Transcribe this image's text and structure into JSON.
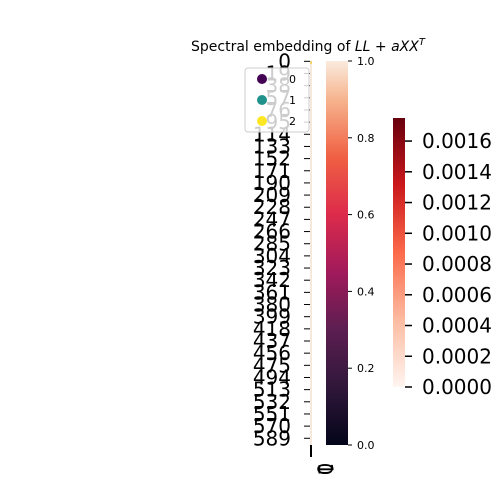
{
  "chart_data": [
    {
      "type": "heatmap",
      "title": "Spectral embedding of ",
      "title_math": {
        "p1": "LL",
        "p2": " + ",
        "p3": "aXX",
        "sup": "T"
      },
      "row_tick_labels": [
        "0",
        "19",
        "38",
        "57",
        "76",
        "95",
        "114",
        "133",
        "152",
        "171",
        "190",
        "209",
        "228",
        "247",
        "266",
        "285",
        "304",
        "323",
        "342",
        "361",
        "380",
        "399",
        "418",
        "437",
        "456",
        "475",
        "494",
        "513",
        "532",
        "551",
        "570",
        "589"
      ],
      "col_tick_labels": [
        "0",
        "1"
      ],
      "rows": 600,
      "cols": 2,
      "values_note": "",
      "colorbar": {
        "colormap": "rocket",
        "range": [
          0.0,
          1.0
        ],
        "ticks": [
          "0.0",
          "0.2",
          "0.4",
          "0.6",
          "0.8",
          "1.0"
        ]
      },
      "legend": {
        "placement": "top",
        "entries": [
          {
            "label": "0",
            "color": "#440154"
          },
          {
            "label": "1",
            "color": "#21918c"
          },
          {
            "label": "2",
            "color": "#fde725"
          }
        ]
      }
    },
    {
      "type": "colorbar",
      "colormap": "Reds",
      "range": [
        0.0,
        0.00175
      ],
      "ticks": [
        "0.0000",
        "0.0002",
        "0.0004",
        "0.0006",
        "0.0008",
        "0.0010",
        "0.0012",
        "0.0014",
        "0.0016"
      ]
    }
  ]
}
